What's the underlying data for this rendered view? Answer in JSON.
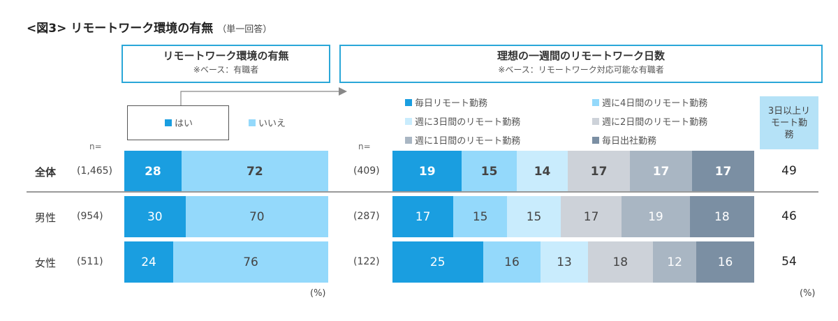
{
  "title": "<図3> リモートワーク環境の有無",
  "title_sub": "（単一回答）",
  "left_panel": {
    "header": "リモートワーク環境の有無",
    "subheader": "※ベース：有職者",
    "n_label": "n=",
    "unit": "(%)"
  },
  "right_panel": {
    "header": "理想の一週間のリモートワーク日数",
    "subheader": "※ベース：リモートワーク対応可能な有職者",
    "n_label": "n=",
    "unit": "(%)",
    "summary_header": "3日以上リモート勤務"
  },
  "chart_data": [
    {
      "type": "bar",
      "stacked": true,
      "orientation": "horizontal",
      "title": "リモートワーク環境の有無",
      "subtitle": "※ベース：有職者",
      "categories": [
        "全体",
        "男性",
        "女性"
      ],
      "n": [
        "(1,465)",
        "(954)",
        "(511)"
      ],
      "series": [
        {
          "name": "はい",
          "color": "#1a9ee0",
          "values": [
            28,
            30,
            24
          ]
        },
        {
          "name": "いいえ",
          "color": "#94d9fb",
          "values": [
            72,
            70,
            76
          ]
        }
      ],
      "xlim": [
        0,
        100
      ],
      "unit": "%"
    },
    {
      "type": "bar",
      "stacked": true,
      "orientation": "horizontal",
      "title": "理想の一週間のリモートワーク日数",
      "subtitle": "※ベース：リモートワーク対応可能な有職者",
      "categories": [
        "全体",
        "男性",
        "女性"
      ],
      "n": [
        "(409)",
        "(287)",
        "(122)"
      ],
      "series": [
        {
          "name": "毎日リモート勤務",
          "color": "#1a9ee0",
          "values": [
            19,
            17,
            25
          ]
        },
        {
          "name": "週に4日間のリモート勤務",
          "color": "#94d9fb",
          "values": [
            15,
            15,
            16
          ]
        },
        {
          "name": "週に3日間のリモート勤務",
          "color": "#c9ecfd",
          "values": [
            14,
            15,
            13
          ]
        },
        {
          "name": "週に2日間のリモート勤務",
          "color": "#cdd2d9",
          "values": [
            17,
            17,
            18
          ]
        },
        {
          "name": "週に1日間のリモート勤務",
          "color": "#a9b6c3",
          "values": [
            17,
            19,
            12
          ]
        },
        {
          "name": "毎日出社勤務",
          "color": "#7b8fa3",
          "values": [
            17,
            18,
            16
          ]
        }
      ],
      "summary": {
        "label": "3日以上リモート勤務",
        "values": [
          49,
          46,
          54
        ]
      },
      "xlim": [
        0,
        100
      ],
      "unit": "%"
    }
  ]
}
